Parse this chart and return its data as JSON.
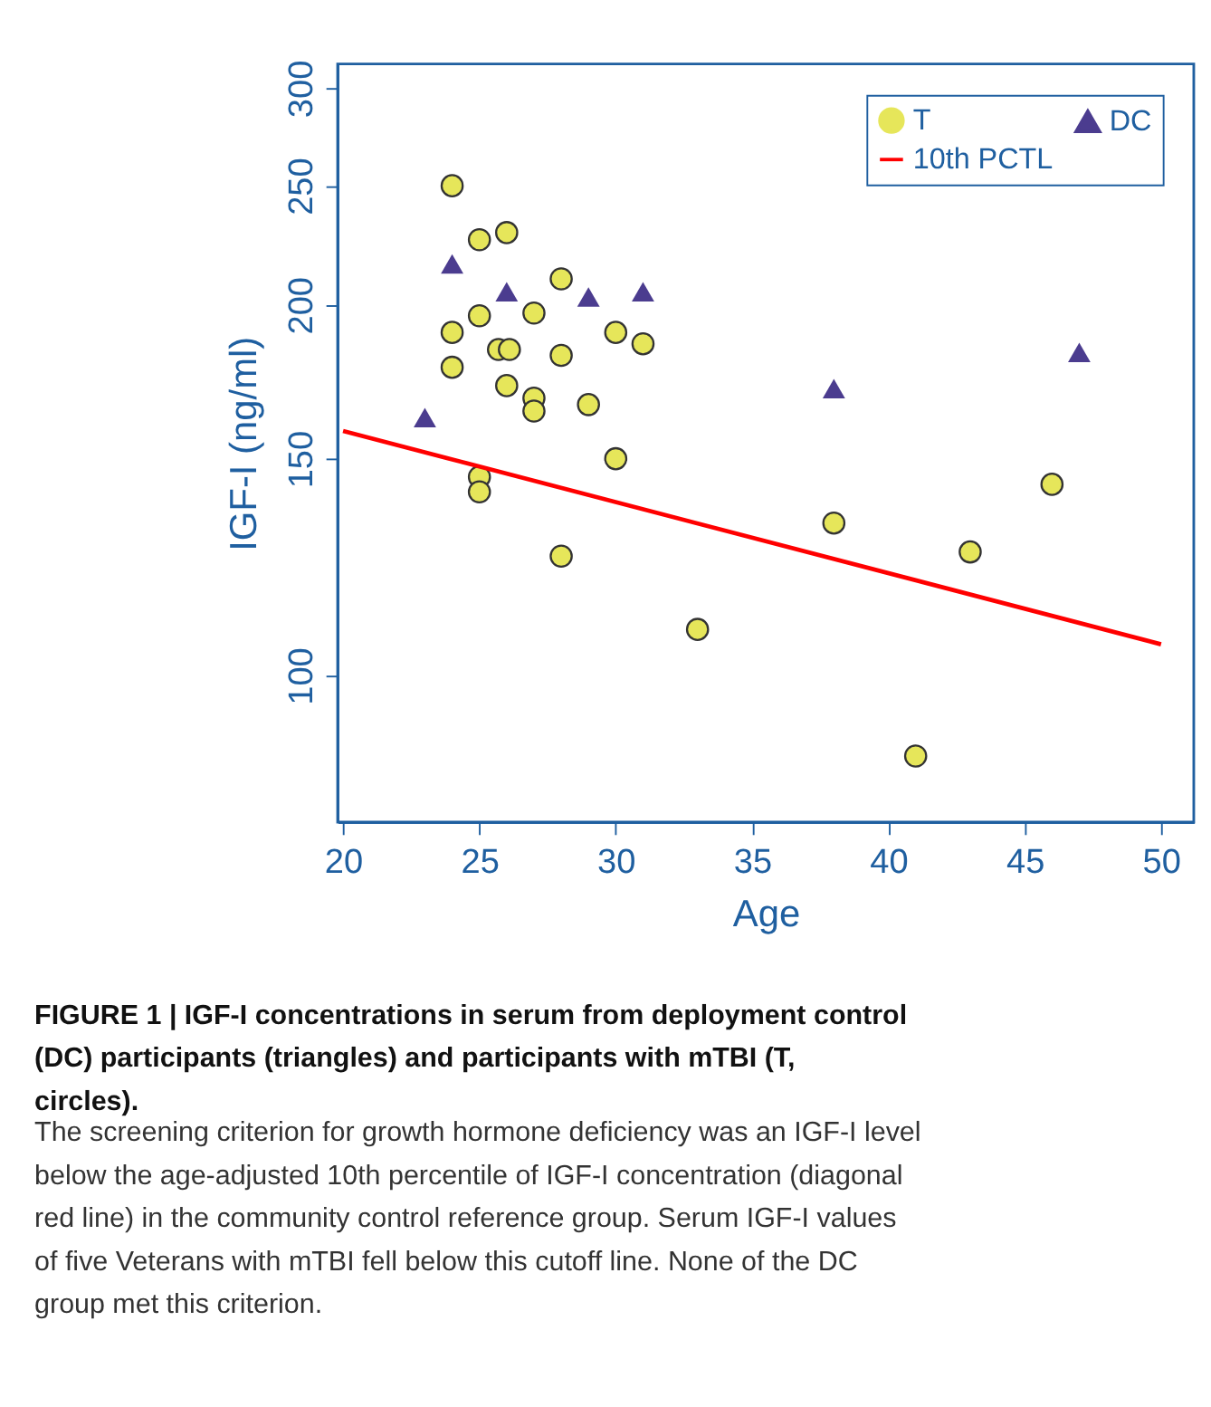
{
  "chart_data": {
    "type": "scatter",
    "xlabel": "Age",
    "ylabel": "IGF-I (ng/ml)",
    "xlim": [
      19.8,
      51.2
    ],
    "xticks": [
      20,
      25,
      30,
      35,
      40,
      45,
      50
    ],
    "ylim": [
      76,
      314
    ],
    "yticks": [
      100,
      150,
      200,
      250,
      300
    ],
    "log": "y",
    "grid": false,
    "legend": "top right",
    "series": [
      {
        "name": "T",
        "marker": "circle",
        "color": "#e6e65a",
        "x": [
          24,
          25,
          26,
          28,
          25,
          27,
          24,
          30,
          31,
          25.7,
          26.1,
          28,
          24,
          26,
          27,
          27,
          29,
          30,
          25,
          25,
          28,
          38,
          46,
          43,
          33,
          41
        ],
        "values": [
          250,
          226,
          229,
          210,
          196,
          197,
          190,
          190,
          186,
          184,
          184,
          182,
          178,
          172,
          168,
          164,
          166,
          150,
          145,
          141,
          125,
          133,
          143,
          126,
          109,
          86
        ]
      },
      {
        "name": "DC",
        "marker": "triangle",
        "color": "#4b3c8f",
        "x": [
          24,
          23,
          26,
          29,
          31,
          38,
          47
        ],
        "values": [
          216,
          162,
          205,
          203,
          205,
          171,
          183
        ]
      },
      {
        "name": "10th PCTL",
        "type": "line",
        "line_style": "solid",
        "color": "#ff0000",
        "x": [
          20,
          50
        ],
        "values": [
          158,
          106
        ]
      }
    ],
    "annotations": [
      "FIGURE 1 | IGF-I concentrations in serum from deployment control (DC) participants (triangles) and participants with mTBI (T, circles).",
      "The screening criterion for growth hormone deficiency was an IGF-I level below the age-adjusted 10th percentile of IGF-I concentration (diagonal red line) in the community control reference group. Serum IGF-I values of five Veterans with mTBI fell below this cutoff line. None of the DC group met this criterion."
    ]
  }
}
